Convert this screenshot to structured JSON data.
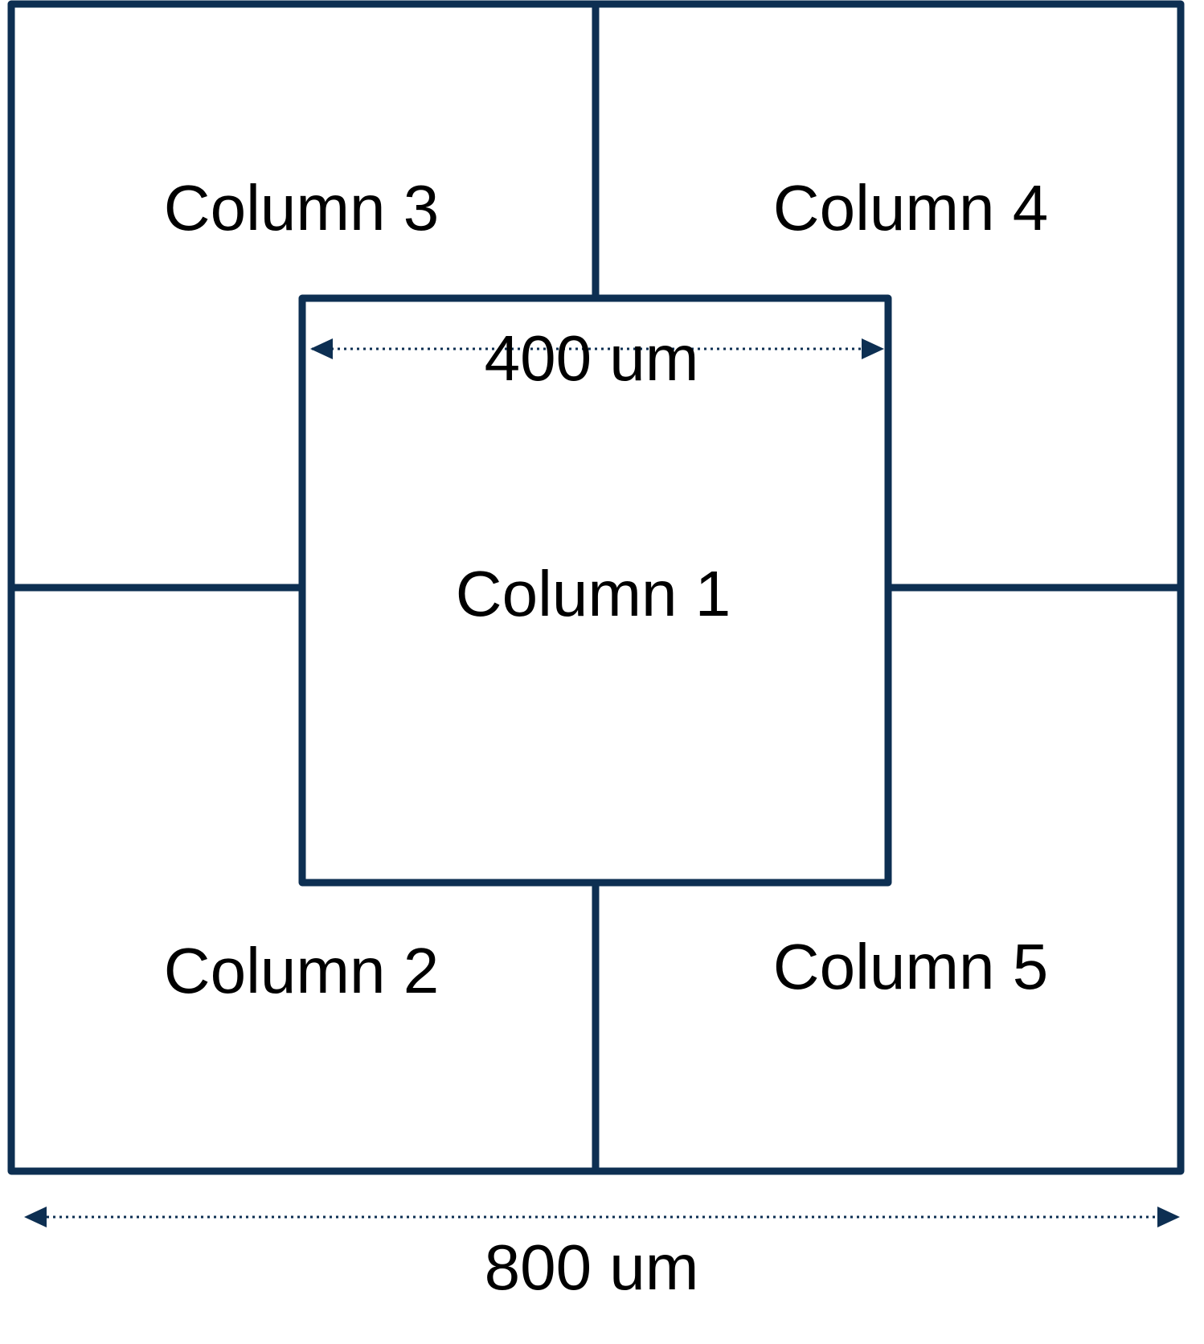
{
  "colors": {
    "stroke": "#0d2f52",
    "text": "#000000",
    "background": "#ffffff"
  },
  "columns": {
    "c1": "Column 1",
    "c2": "Column 2",
    "c3": "Column 3",
    "c4": "Column 4",
    "c5": "Column 5"
  },
  "dimensions": {
    "inner": "400 um",
    "outer": "800 um"
  }
}
